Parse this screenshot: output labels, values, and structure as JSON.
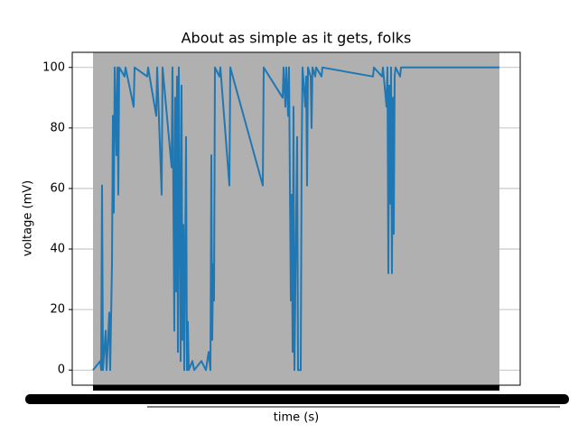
{
  "chart_data": {
    "type": "line",
    "title": "About as simple as it gets, folks",
    "xlabel": "time (s)",
    "ylabel": "voltage (mV)",
    "x": [
      0,
      8,
      9,
      10,
      11,
      14,
      15,
      18,
      19,
      21,
      22,
      23,
      24,
      26,
      27,
      28,
      29,
      35,
      36,
      45,
      46,
      60,
      61,
      70,
      71,
      76,
      77,
      87,
      88,
      90,
      91,
      92,
      93,
      94,
      95,
      97,
      98,
      99,
      100,
      101,
      103,
      104,
      105,
      106,
      110,
      112,
      120,
      125,
      128,
      130,
      131,
      132,
      133,
      134,
      135,
      140,
      141,
      151,
      152,
      188,
      189,
      210,
      211,
      213,
      214,
      216,
      217,
      219,
      220,
      221,
      222,
      223,
      226,
      227,
      230,
      231,
      232,
      235,
      236,
      237,
      238,
      241,
      242,
      243,
      246,
      247,
      253,
      254,
      310,
      311,
      320,
      321,
      325,
      326,
      327,
      328,
      329,
      330,
      331,
      332,
      333,
      334,
      335,
      340,
      341,
      450
    ],
    "series": [
      {
        "name": "voltage",
        "color": "#1f77b4",
        "values": [
          0,
          3,
          0,
          61,
          0,
          13,
          0,
          19,
          0,
          35,
          84,
          52,
          100,
          71,
          100,
          58,
          100,
          97,
          100,
          87,
          100,
          97,
          100,
          84,
          100,
          58,
          100,
          67,
          100,
          13,
          90,
          26,
          97,
          6,
          100,
          3,
          94,
          10,
          48,
          0,
          77,
          0,
          16,
          0,
          3,
          0,
          3,
          0,
          6,
          0,
          71,
          10,
          35,
          23,
          100,
          97,
          100,
          61,
          100,
          61,
          100,
          90,
          100,
          87,
          100,
          84,
          100,
          23,
          58,
          6,
          87,
          0,
          77,
          0,
          0,
          71,
          100,
          87,
          97,
          61,
          100,
          97,
          80,
          100,
          97,
          100,
          97,
          100,
          97,
          100,
          97,
          100,
          87,
          100,
          32,
          94,
          55,
          100,
          32,
          90,
          45,
          97,
          100,
          97,
          100,
          100
        ]
      }
    ],
    "xlim": [
      -23,
      473
    ],
    "ylim": [
      -5,
      105
    ],
    "yticks": [
      0,
      20,
      40,
      60,
      80,
      100
    ],
    "grid": true,
    "span": {
      "x": [
        0,
        450
      ],
      "color": "#b0b0b0"
    }
  }
}
